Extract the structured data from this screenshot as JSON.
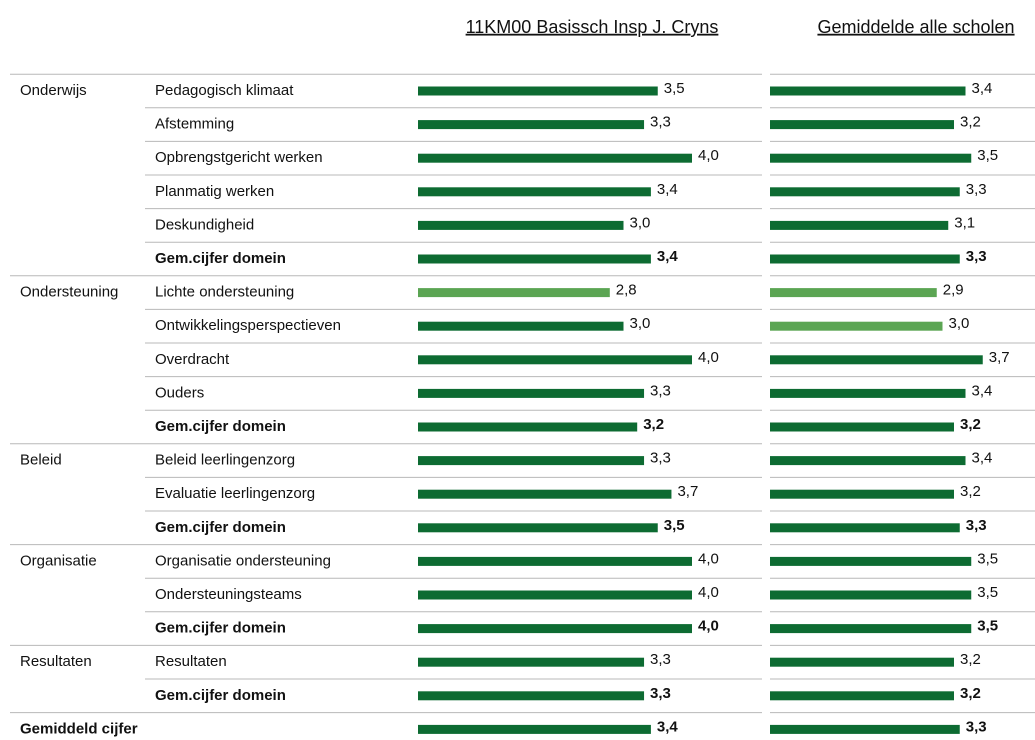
{
  "chart_data": {
    "type": "bar",
    "orientation": "horizontal",
    "column_titles": [
      "11KM00 Basissch Insp J. Cryns",
      "Gemiddelde alle scholen"
    ],
    "groups": [
      {
        "name": "Onderwijs",
        "categories": [
          "Pedagogisch klimaat",
          "Afstemming",
          "Opbrengstgericht werken",
          "Planmatig werken",
          "Deskundigheid",
          "Gem.cijfer domein"
        ],
        "series": [
          {
            "values": [
              3.5,
              3.3,
              4.0,
              3.4,
              3.0,
              3.4
            ],
            "value_labels": [
              "3,5",
              "3,3",
              "4,0",
              "3,4",
              "3,0",
              "3,4"
            ],
            "colors": [
              "#0d6b32",
              "#0d6b32",
              "#0d6b32",
              "#0d6b32",
              "#0d6b32",
              "#0d6b32"
            ]
          },
          {
            "values": [
              3.4,
              3.2,
              3.5,
              3.3,
              3.1,
              3.3
            ],
            "value_labels": [
              "3,4",
              "3,2",
              "3,5",
              "3,3",
              "3,1",
              "3,3"
            ],
            "colors": [
              "#0d6b32",
              "#0d6b32",
              "#0d6b32",
              "#0d6b32",
              "#0d6b32",
              "#0d6b32"
            ]
          }
        ]
      },
      {
        "name": "Ondersteuning",
        "categories": [
          "Lichte ondersteuning",
          "Ontwikkelingsperspectieven",
          "Overdracht",
          "Ouders",
          "Gem.cijfer domein"
        ],
        "series": [
          {
            "values": [
              2.8,
              3.0,
              4.0,
              3.3,
              3.2
            ],
            "value_labels": [
              "2,8",
              "3,0",
              "4,0",
              "3,3",
              "3,2"
            ],
            "colors": [
              "#5ba553",
              "#0d6b32",
              "#0d6b32",
              "#0d6b32",
              "#0d6b32"
            ]
          },
          {
            "values": [
              2.9,
              3.0,
              3.7,
              3.4,
              3.2
            ],
            "value_labels": [
              "2,9",
              "3,0",
              "3,7",
              "3,4",
              "3,2"
            ],
            "colors": [
              "#5ba553",
              "#5ba553",
              "#0d6b32",
              "#0d6b32",
              "#0d6b32"
            ]
          }
        ]
      },
      {
        "name": "Beleid",
        "categories": [
          "Beleid leerlingenzorg",
          "Evaluatie leerlingenzorg",
          "Gem.cijfer domein"
        ],
        "series": [
          {
            "values": [
              3.3,
              3.7,
              3.5
            ],
            "value_labels": [
              "3,3",
              "3,7",
              "3,5"
            ],
            "colors": [
              "#0d6b32",
              "#0d6b32",
              "#0d6b32"
            ]
          },
          {
            "values": [
              3.4,
              3.2,
              3.3
            ],
            "value_labels": [
              "3,4",
              "3,2",
              "3,3"
            ],
            "colors": [
              "#0d6b32",
              "#0d6b32",
              "#0d6b32"
            ]
          }
        ]
      },
      {
        "name": "Organisatie",
        "categories": [
          "Organisatie ondersteuning",
          "Ondersteuningsteams",
          "Gem.cijfer domein"
        ],
        "series": [
          {
            "values": [
              4.0,
              4.0,
              4.0
            ],
            "value_labels": [
              "4,0",
              "4,0",
              "4,0"
            ],
            "colors": [
              "#0d6b32",
              "#0d6b32",
              "#0d6b32"
            ]
          },
          {
            "values": [
              3.5,
              3.5,
              3.5
            ],
            "value_labels": [
              "3,5",
              "3,5",
              "3,5"
            ],
            "colors": [
              "#0d6b32",
              "#0d6b32",
              "#0d6b32"
            ]
          }
        ]
      },
      {
        "name": "Resultaten",
        "categories": [
          "Resultaten",
          "Gem.cijfer domein"
        ],
        "series": [
          {
            "values": [
              3.3,
              3.3
            ],
            "value_labels": [
              "3,3",
              "3,3"
            ],
            "colors": [
              "#0d6b32",
              "#0d6b32"
            ]
          },
          {
            "values": [
              3.2,
              3.2
            ],
            "value_labels": [
              "3,2",
              "3,2"
            ],
            "colors": [
              "#0d6b32",
              "#0d6b32"
            ]
          }
        ]
      },
      {
        "name": "Gemiddeld cijfer",
        "categories": [
          null
        ],
        "series": [
          {
            "values": [
              3.4
            ],
            "value_labels": [
              "3,4"
            ],
            "colors": [
              "#0d6b32"
            ]
          },
          {
            "values": [
              3.3
            ],
            "value_labels": [
              "3,3"
            ],
            "colors": [
              "#0d6b32"
            ]
          }
        ]
      }
    ]
  }
}
